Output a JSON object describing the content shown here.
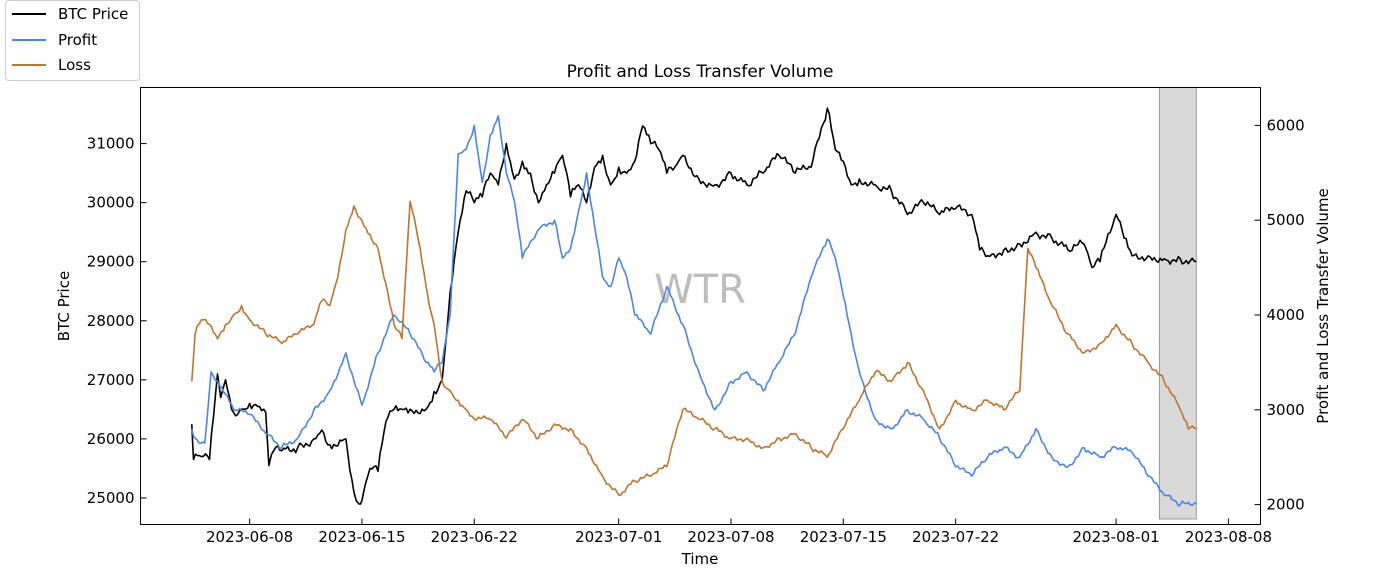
{
  "chart_data": {
    "type": "line",
    "title": "Profit and Loss Transfer Volume",
    "xlabel": "Time",
    "ylabel": "BTC Price",
    "y2label": "Profit and Loss Transfer Volume",
    "watermark": "WTR",
    "x_ticks": [
      "2023-06-08",
      "2023-06-15",
      "2023-06-22",
      "2023-07-01",
      "2023-07-08",
      "2023-07-15",
      "2023-07-22",
      "2023-08-01",
      "2023-08-08"
    ],
    "x_tick_days": [
      7,
      14,
      21,
      30,
      37,
      44,
      51,
      61,
      68
    ],
    "xlim_days": [
      0.2,
      70
    ],
    "y_ticks": [
      25000,
      26000,
      27000,
      28000,
      29000,
      30000,
      31000
    ],
    "ylim": [
      24550,
      31950
    ],
    "y2_ticks": [
      2000,
      3000,
      4000,
      5000,
      6000
    ],
    "y2lim": [
      1790,
      6400
    ],
    "highlight_days": [
      63.7,
      66
    ],
    "legend": [
      {
        "name": "BTC Price",
        "color": "#000000"
      },
      {
        "name": "Profit",
        "color": "#4a86e8"
      },
      {
        "name": "Loss",
        "color": "#c0752a"
      }
    ],
    "series": [
      {
        "name": "BTC Price",
        "axis": "left",
        "color": "#000000",
        "x": [
          3.4,
          3.5,
          4.0,
          4.5,
          5.0,
          5.2,
          5.5,
          6.0,
          6.5,
          7.0,
          7.5,
          8.0,
          8.2,
          8.5,
          9.0,
          10.0,
          11.0,
          11.5,
          12.0,
          13.0,
          13.5,
          13.8,
          14.0,
          14.5,
          15.0,
          15.5,
          16.0,
          16.5,
          17.0,
          18.0,
          18.5,
          19.0,
          19.5,
          20.0,
          20.5,
          21.0,
          21.5,
          22.0,
          22.5,
          23.0,
          23.5,
          24.0,
          24.5,
          25.0,
          25.5,
          26.0,
          26.5,
          27.0,
          27.5,
          28.0,
          28.5,
          29.0,
          29.5,
          30.0,
          30.5,
          31.0,
          31.5,
          32.0,
          32.5,
          33.0,
          33.5,
          34.0,
          35.0,
          36.0,
          37.0,
          38.0,
          39.0,
          40.0,
          41.0,
          42.0,
          43.0,
          43.5,
          44.0,
          44.5,
          45.0,
          46.0,
          47.0,
          48.0,
          49.0,
          50.0,
          51.0,
          52.0,
          52.5,
          53.0,
          54.0,
          55.0,
          56.0,
          57.0,
          58.0,
          59.0,
          59.5,
          60.0,
          61.0,
          61.5,
          62.0,
          63.0,
          64.0,
          65.0,
          66.0
        ],
        "y": [
          26250,
          25650,
          25700,
          25650,
          27100,
          26700,
          27000,
          26450,
          26500,
          26600,
          26550,
          26450,
          25550,
          25800,
          25800,
          25850,
          26000,
          26150,
          25900,
          26000,
          25100,
          24900,
          24950,
          25500,
          25450,
          26300,
          26500,
          26500,
          26500,
          26500,
          26800,
          27000,
          28500,
          29500,
          30200,
          30000,
          30100,
          30500,
          30300,
          31000,
          30400,
          30700,
          30500,
          30000,
          30300,
          30500,
          30800,
          30100,
          30300,
          30000,
          30600,
          30800,
          30300,
          30600,
          30500,
          30700,
          31300,
          31000,
          30900,
          30500,
          30600,
          30800,
          30400,
          30300,
          30500,
          30300,
          30500,
          30800,
          30500,
          30600,
          31600,
          30900,
          30700,
          30300,
          30400,
          30300,
          30200,
          29800,
          30000,
          29800,
          29900,
          29800,
          29200,
          29100,
          29200,
          29300,
          29500,
          29400,
          29200,
          29300,
          28900,
          29000,
          29800,
          29400,
          29100,
          29100,
          29050,
          29050,
          29000
        ]
      },
      {
        "name": "Profit",
        "axis": "right",
        "color": "#4a86e8",
        "x": [
          3.4,
          3.6,
          4.2,
          4.6,
          5.0,
          6.0,
          7.0,
          8.0,
          9.0,
          10.0,
          11.0,
          12.0,
          13.0,
          14.0,
          15.0,
          16.0,
          17.0,
          18.0,
          18.5,
          19.0,
          19.5,
          20.0,
          20.5,
          21.0,
          21.5,
          22.0,
          22.5,
          23.0,
          23.5,
          24.0,
          25.0,
          26.0,
          26.5,
          27.0,
          27.5,
          28.0,
          29.0,
          29.5,
          30.0,
          30.5,
          31.0,
          32.0,
          33.0,
          34.0,
          35.0,
          36.0,
          37.0,
          38.0,
          39.0,
          40.0,
          41.0,
          42.0,
          43.0,
          43.5,
          44.0,
          45.0,
          46.0,
          47.0,
          48.0,
          49.0,
          50.0,
          51.0,
          52.0,
          53.0,
          54.0,
          55.0,
          56.0,
          57.0,
          58.0,
          59.0,
          60.0,
          61.0,
          62.0,
          63.0,
          64.0,
          65.0,
          66.0
        ],
        "y": [
          2800,
          2700,
          2650,
          3400,
          3300,
          3000,
          2950,
          2750,
          2600,
          2700,
          3000,
          3200,
          3600,
          3050,
          3600,
          4000,
          3800,
          3500,
          3400,
          3500,
          4000,
          5700,
          5750,
          6000,
          5400,
          5900,
          6100,
          5500,
          5200,
          4600,
          4900,
          5000,
          4600,
          4700,
          5100,
          5500,
          4400,
          4300,
          4600,
          4400,
          4000,
          3800,
          4300,
          3900,
          3400,
          3000,
          3300,
          3400,
          3200,
          3500,
          3800,
          4400,
          4800,
          4600,
          4200,
          3400,
          2900,
          2800,
          3000,
          2900,
          2700,
          2400,
          2300,
          2500,
          2600,
          2500,
          2800,
          2500,
          2400,
          2600,
          2500,
          2600,
          2550,
          2300,
          2100,
          2000,
          2020
        ]
      },
      {
        "name": "Loss",
        "axis": "right",
        "color": "#c0752a",
        "x": [
          3.4,
          3.6,
          4.0,
          4.5,
          5.0,
          5.5,
          6.0,
          6.5,
          7.0,
          8.0,
          9.0,
          10.0,
          11.0,
          11.5,
          12.0,
          12.5,
          13.0,
          13.5,
          14.0,
          14.5,
          15.0,
          16.0,
          16.5,
          17.0,
          17.5,
          18.0,
          18.2,
          18.5,
          19.0,
          19.5,
          20.0,
          20.5,
          21.0,
          22.0,
          23.0,
          24.0,
          25.0,
          26.0,
          27.0,
          28.0,
          29.0,
          30.0,
          31.0,
          32.0,
          33.0,
          34.0,
          35.0,
          36.0,
          37.0,
          38.0,
          39.0,
          40.0,
          41.0,
          42.0,
          43.0,
          44.0,
          45.0,
          46.0,
          47.0,
          48.0,
          49.0,
          50.0,
          51.0,
          52.0,
          53.0,
          54.0,
          55.0,
          55.5,
          56.0,
          57.0,
          58.0,
          59.0,
          60.0,
          61.0,
          62.0,
          63.0,
          64.0,
          65.0,
          65.5,
          66.0
        ],
        "y": [
          3300,
          3800,
          3950,
          3900,
          3750,
          3900,
          4000,
          4100,
          3950,
          3800,
          3700,
          3800,
          3900,
          4150,
          4100,
          4400,
          4900,
          5150,
          5000,
          4850,
          4700,
          3900,
          3750,
          5200,
          4800,
          4300,
          4100,
          3900,
          3300,
          3200,
          3100,
          3000,
          2900,
          2900,
          2700,
          2900,
          2700,
          2850,
          2800,
          2600,
          2300,
          2100,
          2250,
          2300,
          2400,
          3000,
          2900,
          2800,
          2700,
          2700,
          2600,
          2700,
          2750,
          2600,
          2500,
          2800,
          3100,
          3400,
          3300,
          3500,
          3200,
          2800,
          3100,
          3000,
          3100,
          3000,
          3200,
          4700,
          4500,
          4100,
          3800,
          3600,
          3700,
          3900,
          3700,
          3500,
          3300,
          3000,
          2800,
          2800
        ]
      }
    ]
  }
}
